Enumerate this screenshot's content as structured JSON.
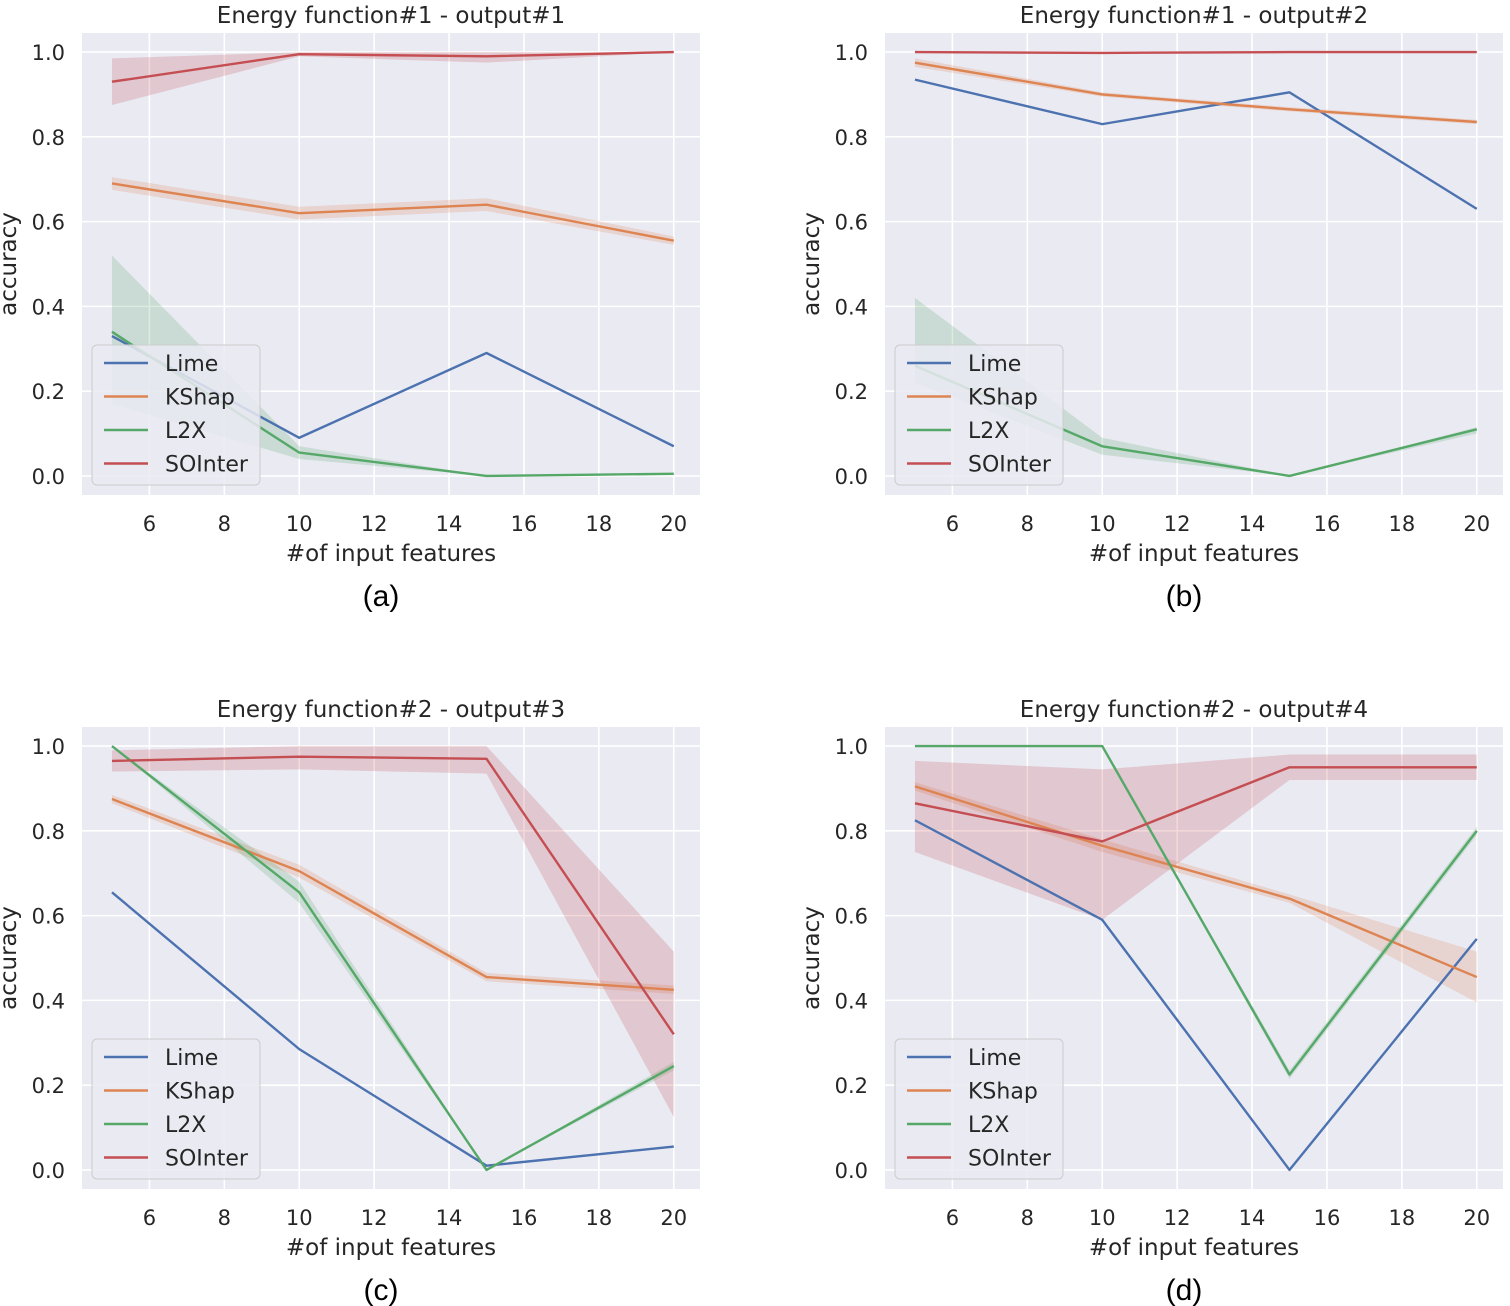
{
  "legend": {
    "location": "lower-left",
    "entries": [
      {
        "name": "Lime",
        "color": "#4c72b0"
      },
      {
        "name": "KShap",
        "color": "#dd8452"
      },
      {
        "name": "L2X",
        "color": "#55a868"
      },
      {
        "name": "SOInter",
        "color": "#c44e52"
      }
    ]
  },
  "chart_data": [
    {
      "type": "line",
      "caption": "(a)",
      "title": "Energy function#1 - output#1",
      "xlabel": "#of input features",
      "ylabel": "accuracy",
      "xlim": [
        4.2,
        20.7
      ],
      "ylim": [
        -0.045,
        1.045
      ],
      "xticks": [
        "6",
        "8",
        "10",
        "12",
        "14",
        "16",
        "18",
        "20"
      ],
      "yticks": [
        "0.0",
        "0.2",
        "0.4",
        "0.6",
        "0.8",
        "1.0"
      ],
      "x": [
        5,
        10,
        15,
        20
      ],
      "series": [
        {
          "name": "Lime",
          "values": [
            0.33,
            0.09,
            0.29,
            0.07
          ],
          "lower": [
            0.33,
            0.09,
            0.29,
            0.07
          ],
          "upper": [
            0.33,
            0.09,
            0.29,
            0.07
          ]
        },
        {
          "name": "KShap",
          "values": [
            0.69,
            0.62,
            0.64,
            0.555
          ],
          "lower": [
            0.675,
            0.605,
            0.625,
            0.545
          ],
          "upper": [
            0.705,
            0.635,
            0.655,
            0.565
          ]
        },
        {
          "name": "L2X",
          "values": [
            0.34,
            0.055,
            0.0,
            0.005
          ],
          "lower": [
            0.17,
            0.04,
            0.0,
            0.003
          ],
          "upper": [
            0.52,
            0.07,
            0.0,
            0.008
          ]
        },
        {
          "name": "SOInter",
          "values": [
            0.93,
            0.995,
            0.99,
            1.0
          ],
          "lower": [
            0.875,
            0.99,
            0.975,
            1.0
          ],
          "upper": [
            0.985,
            1.0,
            1.0,
            1.0
          ]
        }
      ]
    },
    {
      "type": "line",
      "caption": "(b)",
      "title": "Energy function#1 - output#2",
      "xlabel": "#of input features",
      "ylabel": "accuracy",
      "xlim": [
        4.2,
        20.7
      ],
      "ylim": [
        -0.045,
        1.045
      ],
      "xticks": [
        "6",
        "8",
        "10",
        "12",
        "14",
        "16",
        "18",
        "20"
      ],
      "yticks": [
        "0.0",
        "0.2",
        "0.4",
        "0.6",
        "0.8",
        "1.0"
      ],
      "x": [
        5,
        10,
        15,
        20
      ],
      "series": [
        {
          "name": "Lime",
          "values": [
            0.935,
            0.83,
            0.905,
            0.63
          ],
          "lower": [
            0.935,
            0.83,
            0.905,
            0.63
          ],
          "upper": [
            0.935,
            0.83,
            0.905,
            0.63
          ]
        },
        {
          "name": "KShap",
          "values": [
            0.975,
            0.9,
            0.865,
            0.835
          ],
          "lower": [
            0.965,
            0.895,
            0.86,
            0.83
          ],
          "upper": [
            0.985,
            0.905,
            0.87,
            0.84
          ]
        },
        {
          "name": "L2X",
          "values": [
            0.26,
            0.07,
            0.0,
            0.11
          ],
          "lower": [
            0.22,
            0.05,
            0.0,
            0.1
          ],
          "upper": [
            0.42,
            0.09,
            0.0,
            0.115
          ]
        },
        {
          "name": "SOInter",
          "values": [
            1.0,
            0.998,
            1.0,
            1.0
          ],
          "lower": [
            0.998,
            0.996,
            0.999,
            1.0
          ],
          "upper": [
            1.0,
            1.0,
            1.0,
            1.0
          ]
        }
      ]
    },
    {
      "type": "line",
      "caption": "(c)",
      "title": "Energy function#2 - output#3",
      "xlabel": "#of input features",
      "ylabel": "accuracy",
      "xlim": [
        4.2,
        20.7
      ],
      "ylim": [
        -0.045,
        1.045
      ],
      "xticks": [
        "6",
        "8",
        "10",
        "12",
        "14",
        "16",
        "18",
        "20"
      ],
      "yticks": [
        "0.0",
        "0.2",
        "0.4",
        "0.6",
        "0.8",
        "1.0"
      ],
      "x": [
        5,
        10,
        15,
        20
      ],
      "series": [
        {
          "name": "Lime",
          "values": [
            0.655,
            0.285,
            0.01,
            0.055
          ],
          "lower": [
            0.655,
            0.285,
            0.01,
            0.055
          ],
          "upper": [
            0.655,
            0.285,
            0.01,
            0.055
          ]
        },
        {
          "name": "KShap",
          "values": [
            0.875,
            0.705,
            0.455,
            0.425
          ],
          "lower": [
            0.865,
            0.69,
            0.445,
            0.415
          ],
          "upper": [
            0.885,
            0.72,
            0.465,
            0.435
          ]
        },
        {
          "name": "L2X",
          "values": [
            1.0,
            0.655,
            0.0,
            0.245
          ],
          "lower": [
            1.0,
            0.63,
            0.0,
            0.235
          ],
          "upper": [
            1.0,
            0.68,
            0.0,
            0.255
          ]
        },
        {
          "name": "SOInter",
          "values": [
            0.965,
            0.975,
            0.97,
            0.32
          ],
          "lower": [
            0.94,
            0.945,
            0.935,
            0.125
          ],
          "upper": [
            0.99,
            1.0,
            1.0,
            0.515
          ]
        }
      ]
    },
    {
      "type": "line",
      "caption": "(d)",
      "title": "Energy function#2 - output#4",
      "xlabel": "#of input features",
      "ylabel": "accuracy",
      "xlim": [
        4.2,
        20.7
      ],
      "ylim": [
        -0.045,
        1.045
      ],
      "xticks": [
        "6",
        "8",
        "10",
        "12",
        "14",
        "16",
        "18",
        "20"
      ],
      "yticks": [
        "0.0",
        "0.2",
        "0.4",
        "0.6",
        "0.8",
        "1.0"
      ],
      "x": [
        5,
        10,
        15,
        20
      ],
      "series": [
        {
          "name": "Lime",
          "values": [
            0.825,
            0.59,
            0.0,
            0.545
          ],
          "lower": [
            0.825,
            0.59,
            0.0,
            0.545
          ],
          "upper": [
            0.825,
            0.59,
            0.0,
            0.545
          ]
        },
        {
          "name": "KShap",
          "values": [
            0.905,
            0.765,
            0.64,
            0.455
          ],
          "lower": [
            0.895,
            0.75,
            0.63,
            0.395
          ],
          "upper": [
            0.915,
            0.78,
            0.65,
            0.515
          ]
        },
        {
          "name": "L2X",
          "values": [
            1.0,
            1.0,
            0.225,
            0.8
          ],
          "lower": [
            1.0,
            1.0,
            0.215,
            0.79
          ],
          "upper": [
            1.0,
            1.0,
            0.235,
            0.81
          ]
        },
        {
          "name": "SOInter",
          "values": [
            0.865,
            0.775,
            0.95,
            0.95
          ],
          "lower": [
            0.75,
            0.59,
            0.92,
            0.92
          ],
          "upper": [
            0.965,
            0.945,
            0.98,
            0.98
          ]
        }
      ]
    }
  ]
}
